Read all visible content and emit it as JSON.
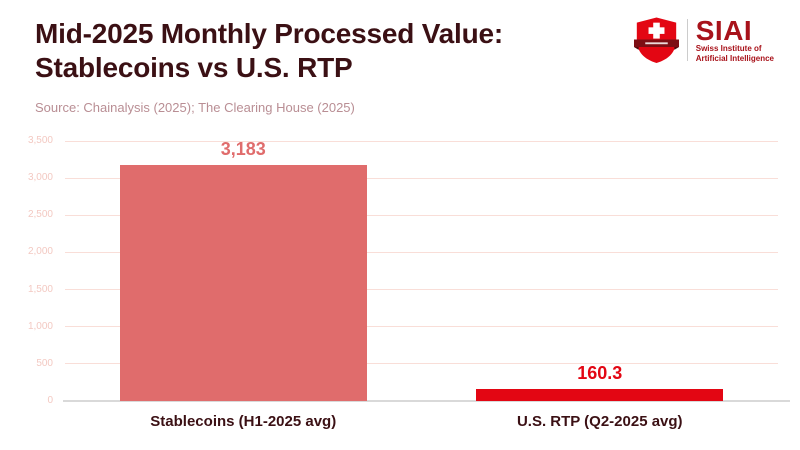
{
  "title": {
    "line1": "Mid-2025 Monthly Processed Value:",
    "line2": "Stablecoins vs U.S. RTP"
  },
  "source": "Source: Chainalysis (2025); The Clearing House (2025)",
  "logo": {
    "acronym": "SIAI",
    "subtitle_line1": "Swiss Institute of",
    "subtitle_line2": "Artificial Intelligence"
  },
  "colors": {
    "title": "#3b1014",
    "source": "#b98e94",
    "gridline": "#f9ded8",
    "tick_label": "#f3c9c2",
    "axis_line": "#d9d9d9",
    "logo_red": "#a8121a",
    "shield_red": "#e30613",
    "shield_band": "#7d0e14",
    "category_label": "#3b1014"
  },
  "chart_data": {
    "type": "bar",
    "title": "Mid-2025 Monthly Processed Value: Stablecoins vs U.S. RTP",
    "source_note": "Source: Chainalysis (2025); The Clearing House (2025)",
    "categories": [
      "Stablecoins (H1-2025 avg)",
      "U.S. RTP (Q2-2025 avg)"
    ],
    "values": [
      3183,
      160.3
    ],
    "value_labels": [
      "3,183",
      "160.3"
    ],
    "bar_colors": [
      "#e06c6c",
      "#e30613"
    ],
    "label_colors": [
      "#e06c6c",
      "#e30613"
    ],
    "ylim": [
      0,
      3500
    ],
    "yticks": [
      0,
      500,
      1000,
      1500,
      2000,
      2500,
      3000,
      3500
    ],
    "ytick_labels": [
      "0",
      "500",
      "1,000",
      "1,500",
      "2,000",
      "2,500",
      "3,000",
      "3,500"
    ],
    "grid": true,
    "legend": false,
    "xlabel": "",
    "ylabel": ""
  }
}
